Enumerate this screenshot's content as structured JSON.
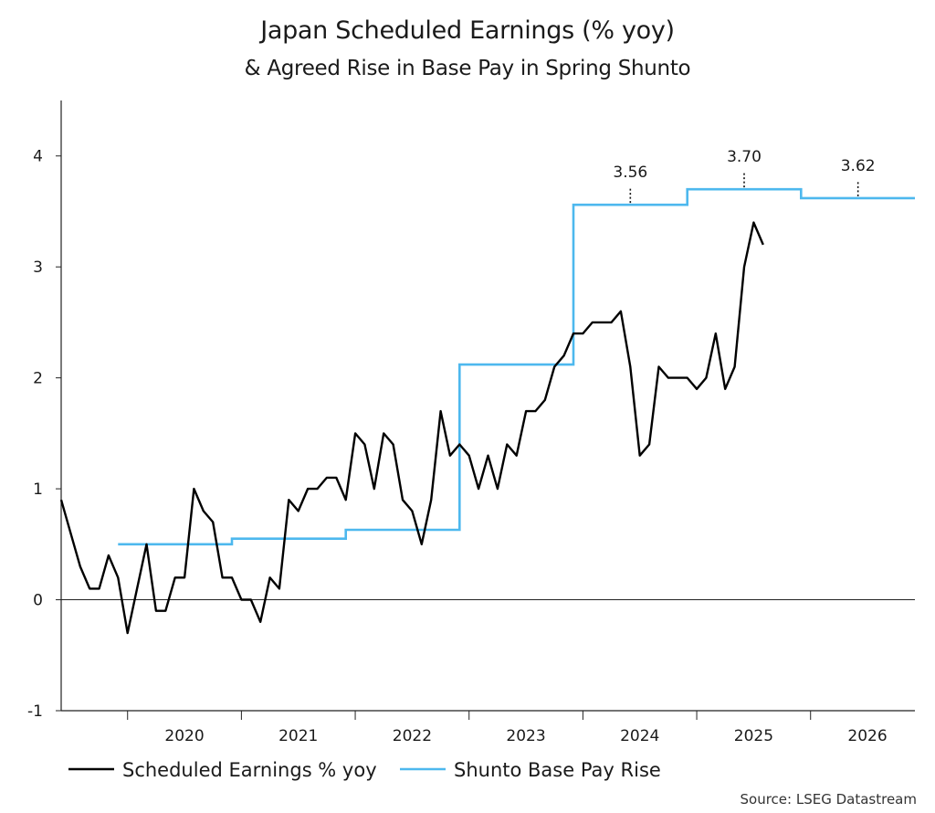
{
  "chart_data": {
    "type": "line",
    "title": "Japan Scheduled Earnings (% yoy)",
    "subtitle": "& Agreed Rise in Base Pay in Spring Shunto",
    "source": "Source: LSEG Datastream",
    "y_ticks": [
      "-1",
      "0",
      "1",
      "2",
      "3",
      "4"
    ],
    "ylim": [
      -1,
      4.5
    ],
    "x_tick_labels": [
      "2020",
      "2021",
      "2022",
      "2023",
      "2024",
      "2025",
      "2026"
    ],
    "xlim": [
      "2019-06",
      "2026-12"
    ],
    "grid": false,
    "zero_line": true,
    "legend_placement": "bottom",
    "series": [
      {
        "name": "Scheduled Earnings % yoy",
        "color": "#000000",
        "start": "2019-06",
        "frequency": "monthly",
        "values": [
          0.9,
          0.6,
          0.3,
          0.1,
          0.1,
          0.4,
          0.2,
          -0.3,
          0.1,
          0.5,
          -0.1,
          -0.1,
          0.2,
          0.2,
          1.0,
          0.8,
          0.7,
          0.2,
          0.2,
          0.0,
          0.0,
          -0.2,
          0.2,
          0.1,
          0.9,
          0.8,
          1.0,
          1.0,
          1.1,
          1.1,
          0.9,
          1.5,
          1.4,
          1.0,
          1.5,
          1.4,
          0.9,
          0.8,
          0.5,
          0.9,
          1.7,
          1.3,
          1.4,
          1.3,
          1.0,
          1.3,
          1.0,
          1.4,
          1.3,
          1.7,
          1.7,
          1.8,
          2.1,
          2.2,
          2.4,
          2.4,
          2.5,
          2.5,
          2.5,
          2.6,
          2.1,
          1.3,
          1.4,
          2.1,
          2.0,
          2.0,
          2.0,
          1.9,
          2.0,
          2.4,
          1.9,
          2.1,
          3.0,
          3.4,
          3.2
        ]
      },
      {
        "name": "Shunto Base Pay Rise",
        "color": "#4db8ee",
        "steps": [
          {
            "from": "2019-12",
            "to": "2020-12",
            "value": 0.5
          },
          {
            "from": "2020-12",
            "to": "2021-12",
            "value": 0.55
          },
          {
            "from": "2021-12",
            "to": "2022-12",
            "value": 0.63
          },
          {
            "from": "2022-12",
            "to": "2023-12",
            "value": 2.12
          },
          {
            "from": "2023-12",
            "to": "2024-12",
            "value": 3.56
          },
          {
            "from": "2024-12",
            "to": "2025-12",
            "value": 3.7
          },
          {
            "from": "2025-12",
            "to": "2026-12",
            "value": 3.62
          }
        ]
      }
    ],
    "annotations": [
      {
        "text": "3.56",
        "x": "2024-06",
        "value": 3.56
      },
      {
        "text": "3.70",
        "x": "2025-06",
        "value": 3.7
      },
      {
        "text": "3.62",
        "x": "2026-06",
        "value": 3.62
      }
    ]
  }
}
